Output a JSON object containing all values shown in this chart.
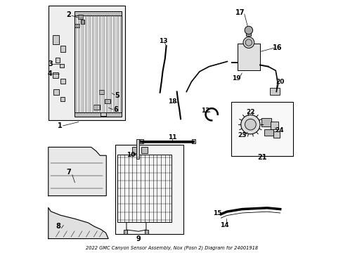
{
  "title": "2022 GMC Canyon Sensor Assembly, Nox (Posn 2) Diagram for 24001918",
  "background_color": "#ffffff",
  "border_color": "#000000",
  "line_color": "#000000",
  "text_color": "#000000"
}
